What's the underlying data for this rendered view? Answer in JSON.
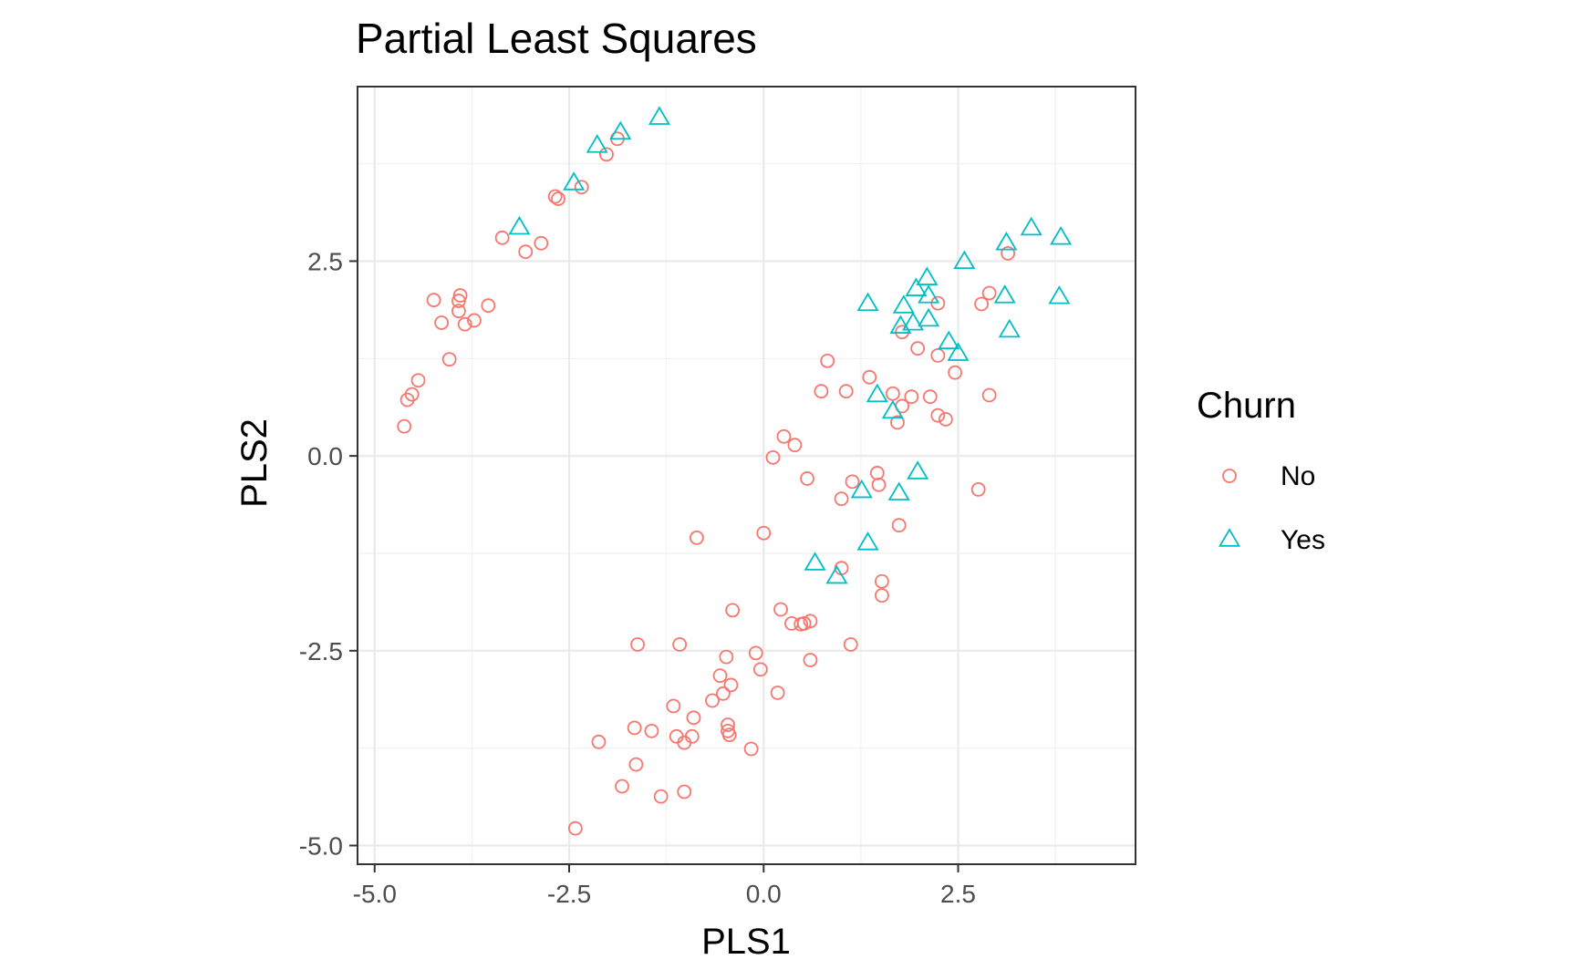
{
  "chart_data": {
    "type": "scatter",
    "title": "Partial Least Squares",
    "xlabel": "PLS1",
    "ylabel": "PLS2",
    "xlim": [
      -5.22,
      4.78
    ],
    "ylim": [
      -5.24,
      4.74
    ],
    "x_ticks": [
      -5.0,
      -2.5,
      0.0,
      2.5
    ],
    "x_tick_labels": [
      "-5.0",
      "-2.5",
      "0.0",
      "2.5"
    ],
    "y_ticks": [
      -5.0,
      -2.5,
      0.0,
      2.5
    ],
    "y_tick_labels": [
      "-5.0",
      "-2.5",
      "0.0",
      "2.5"
    ],
    "grid": true,
    "legend": {
      "title": "Churn",
      "position": "right"
    },
    "series": [
      {
        "name": "No",
        "color": "#F8766D",
        "marker": "circle-open",
        "points": [
          [
            -1.88,
            4.07
          ],
          [
            -2.02,
            3.87
          ],
          [
            -2.34,
            3.45
          ],
          [
            -2.68,
            3.33
          ],
          [
            -2.64,
            3.3
          ],
          [
            -3.36,
            2.8
          ],
          [
            -2.86,
            2.73
          ],
          [
            -3.06,
            2.62
          ],
          [
            -4.24,
            2.0
          ],
          [
            -3.9,
            2.06
          ],
          [
            -3.92,
            1.99
          ],
          [
            -3.54,
            1.93
          ],
          [
            -3.92,
            1.86
          ],
          [
            -3.72,
            1.74
          ],
          [
            -4.14,
            1.71
          ],
          [
            -3.84,
            1.69
          ],
          [
            -4.04,
            1.24
          ],
          [
            -4.44,
            0.97
          ],
          [
            -4.52,
            0.79
          ],
          [
            -4.58,
            0.72
          ],
          [
            -4.62,
            0.38
          ],
          [
            3.14,
            2.6
          ],
          [
            2.9,
            2.09
          ],
          [
            2.8,
            1.95
          ],
          [
            2.24,
            1.96
          ],
          [
            1.78,
            1.59
          ],
          [
            1.98,
            1.38
          ],
          [
            2.24,
            1.29
          ],
          [
            0.82,
            1.22
          ],
          [
            2.46,
            1.07
          ],
          [
            1.36,
            1.01
          ],
          [
            0.74,
            0.83
          ],
          [
            1.06,
            0.83
          ],
          [
            1.66,
            0.8
          ],
          [
            1.9,
            0.76
          ],
          [
            2.14,
            0.76
          ],
          [
            2.9,
            0.78
          ],
          [
            1.78,
            0.64
          ],
          [
            2.24,
            0.52
          ],
          [
            2.34,
            0.47
          ],
          [
            1.72,
            0.43
          ],
          [
            0.26,
            0.25
          ],
          [
            0.4,
            0.14
          ],
          [
            0.12,
            -0.02
          ],
          [
            1.46,
            -0.22
          ],
          [
            0.56,
            -0.29
          ],
          [
            1.14,
            -0.33
          ],
          [
            1.48,
            -0.37
          ],
          [
            1.0,
            -0.55
          ],
          [
            2.76,
            -0.43
          ],
          [
            1.74,
            -0.89
          ],
          [
            -0.86,
            -1.05
          ],
          [
            0.0,
            -0.99
          ],
          [
            1.0,
            -1.44
          ],
          [
            1.52,
            -1.61
          ],
          [
            1.52,
            -1.79
          ],
          [
            -0.4,
            -1.98
          ],
          [
            0.22,
            -1.97
          ],
          [
            0.6,
            -2.12
          ],
          [
            0.52,
            -2.15
          ],
          [
            0.36,
            -2.15
          ],
          [
            0.48,
            -2.16
          ],
          [
            -1.62,
            -2.42
          ],
          [
            -1.08,
            -2.42
          ],
          [
            1.12,
            -2.42
          ],
          [
            -0.1,
            -2.53
          ],
          [
            -0.48,
            -2.58
          ],
          [
            0.6,
            -2.62
          ],
          [
            -0.04,
            -2.74
          ],
          [
            -0.56,
            -2.82
          ],
          [
            -0.42,
            -2.94
          ],
          [
            -0.52,
            -3.05
          ],
          [
            0.18,
            -3.04
          ],
          [
            -0.66,
            -3.14
          ],
          [
            -1.16,
            -3.21
          ],
          [
            -0.9,
            -3.36
          ],
          [
            -1.66,
            -3.49
          ],
          [
            -0.46,
            -3.45
          ],
          [
            -1.44,
            -3.53
          ],
          [
            -0.46,
            -3.53
          ],
          [
            -1.12,
            -3.6
          ],
          [
            -0.92,
            -3.6
          ],
          [
            -0.44,
            -3.58
          ],
          [
            -2.12,
            -3.67
          ],
          [
            -1.02,
            -3.68
          ],
          [
            -0.16,
            -3.76
          ],
          [
            -1.64,
            -3.96
          ],
          [
            -1.82,
            -4.24
          ],
          [
            -1.02,
            -4.31
          ],
          [
            -1.32,
            -4.37
          ],
          [
            -2.42,
            -4.78
          ]
        ]
      },
      {
        "name": "Yes",
        "color": "#00BFC4",
        "marker": "triangle-open",
        "points": [
          [
            -1.34,
            4.34
          ],
          [
            -1.84,
            4.15
          ],
          [
            -2.14,
            3.98
          ],
          [
            -2.44,
            3.5
          ],
          [
            -3.14,
            2.93
          ],
          [
            3.44,
            2.92
          ],
          [
            3.82,
            2.8
          ],
          [
            3.12,
            2.73
          ],
          [
            2.58,
            2.49
          ],
          [
            2.1,
            2.28
          ],
          [
            1.96,
            2.14
          ],
          [
            2.12,
            2.05
          ],
          [
            3.1,
            2.05
          ],
          [
            3.8,
            2.04
          ],
          [
            1.34,
            1.95
          ],
          [
            1.8,
            1.92
          ],
          [
            1.92,
            1.7
          ],
          [
            2.12,
            1.75
          ],
          [
            1.76,
            1.66
          ],
          [
            3.16,
            1.61
          ],
          [
            2.38,
            1.46
          ],
          [
            2.5,
            1.31
          ],
          [
            1.46,
            0.78
          ],
          [
            1.66,
            0.57
          ],
          [
            1.98,
            -0.21
          ],
          [
            1.26,
            -0.45
          ],
          [
            1.74,
            -0.48
          ],
          [
            1.34,
            -1.12
          ],
          [
            0.66,
            -1.38
          ],
          [
            0.94,
            -1.55
          ]
        ]
      }
    ]
  }
}
